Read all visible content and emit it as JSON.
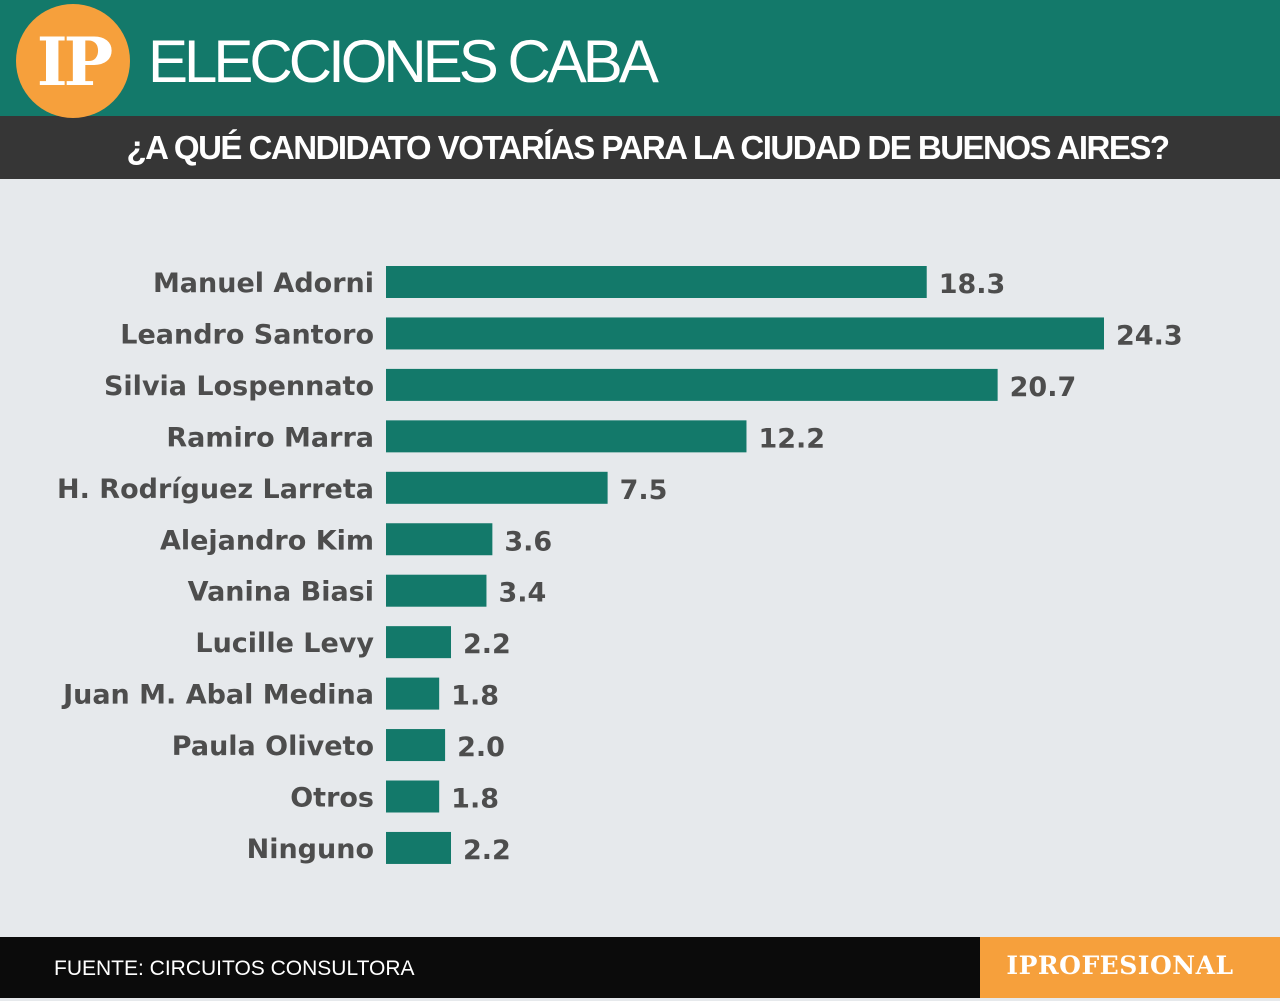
{
  "header": {
    "logo_text": "IP",
    "title": "ELECCIONES CABA",
    "subtitle": "¿A QUÉ CANDIDATO VOTARÍAS PARA LA CIUDAD DE BUENOS AIRES?"
  },
  "footer": {
    "source": "FUENTE: CIRCUITOS CONSULTORA",
    "brand": "IPROFESIONAL"
  },
  "colors": {
    "bar": "#13796a",
    "label": "#4d4d4d",
    "header": "#13796a",
    "accent": "#f6a03c"
  },
  "chart_data": {
    "type": "bar",
    "orientation": "horizontal",
    "title": "¿A QUÉ CANDIDATO VOTARÍAS PARA LA CIUDAD DE BUENOS AIRES?",
    "categories": [
      "Manuel Adorni",
      "Leandro Santoro",
      "Silvia Lospennato",
      "Ramiro Marra",
      "H. Rodríguez Larreta",
      "Alejandro Kim",
      "Vanina Biasi",
      "Lucille Levy",
      "Juan M. Abal Medina",
      "Paula Oliveto",
      "Otros",
      "Ninguno"
    ],
    "values": [
      18.3,
      24.3,
      20.7,
      12.2,
      7.5,
      3.6,
      3.4,
      2.2,
      1.8,
      2.0,
      1.8,
      2.2
    ],
    "value_labels": [
      "18.3",
      "24.3",
      "20.7",
      "12.2",
      "7.5",
      "3.6",
      "3.4",
      "2.2",
      "1.8",
      "2.0",
      "1.8",
      "2.2"
    ],
    "xlim": [
      0,
      24.3
    ],
    "grid": false,
    "legend": "none"
  }
}
